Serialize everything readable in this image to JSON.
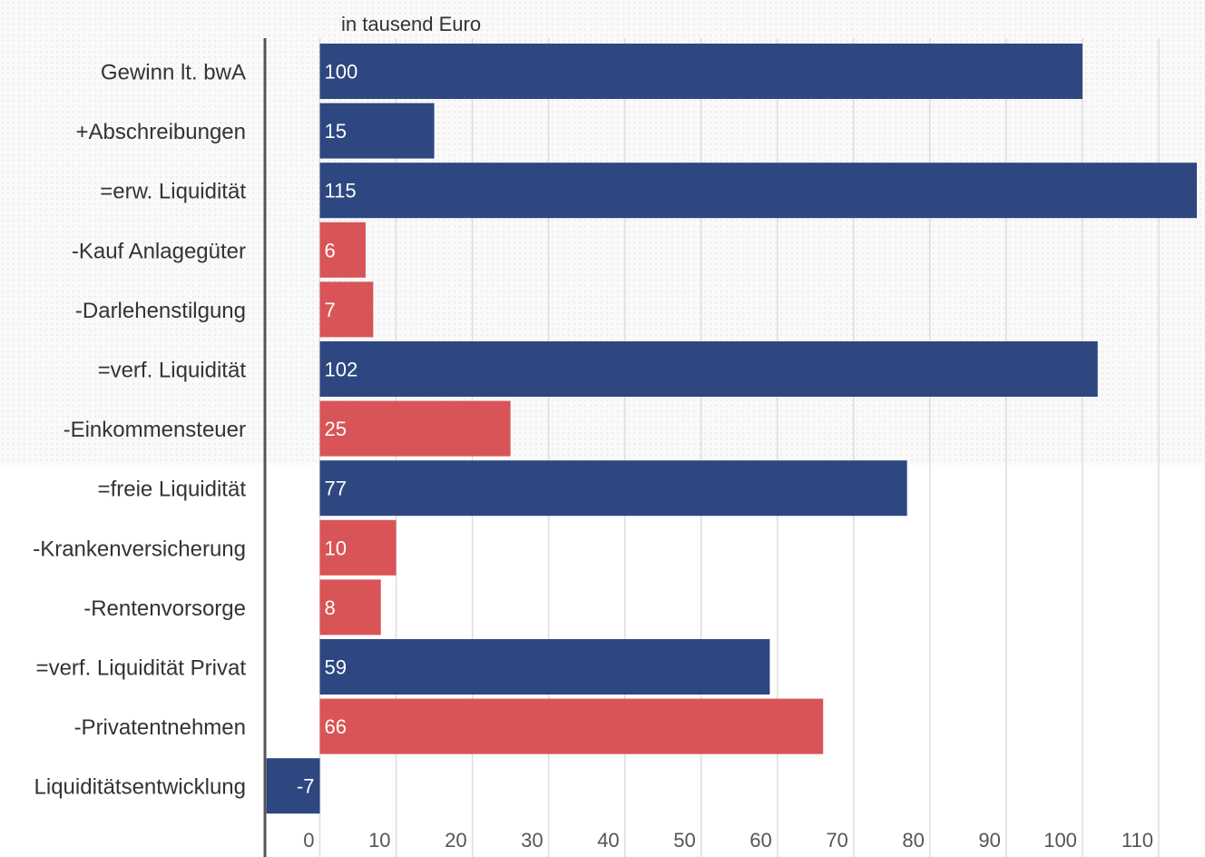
{
  "chart_data": {
    "type": "bar",
    "orientation": "horizontal",
    "unit_label": "in tausend Euro",
    "categories": [
      "Gewinn lt. bwA",
      "+Abschreibungen",
      "=erw. Liquidität",
      "-Kauf Anlagegüter",
      "-Darlehenstilgung",
      "=verf. Liquidität",
      "-Einkommensteuer",
      "=freie Liquidität",
      "-Krankenversicherung",
      "-Rentenvorsorge",
      "=verf. Liquidität Privat",
      "-Privatentnehmen",
      "Liquiditätsentwicklung"
    ],
    "values": [
      100,
      15,
      115,
      6,
      7,
      102,
      25,
      77,
      10,
      8,
      59,
      66,
      -7
    ],
    "value_labels": [
      "100",
      "15",
      "115",
      "6",
      "7",
      "102",
      "25",
      "77",
      "10",
      "8",
      "59",
      "66",
      "-7"
    ],
    "bar_colors": [
      "#2e4780",
      "#2e4780",
      "#2e4780",
      "#d95457",
      "#d95457",
      "#2e4780",
      "#d95457",
      "#2e4780",
      "#d95457",
      "#d95457",
      "#2e4780",
      "#d95457",
      "#2e4780"
    ],
    "x_ticks": [
      0,
      10,
      20,
      30,
      40,
      50,
      60,
      70,
      80,
      90,
      100,
      110
    ],
    "x_tick_labels": [
      "0",
      "10",
      "20",
      "30",
      "40",
      "50",
      "60",
      "70",
      "80",
      "90",
      "100",
      "110"
    ],
    "xlim": [
      -7.2,
      115
    ],
    "grid": true,
    "legend": "none"
  },
  "colors": {
    "positive": "#2e4780",
    "negative": "#d95457",
    "grid": "#dddddd",
    "axis": "#555555"
  }
}
